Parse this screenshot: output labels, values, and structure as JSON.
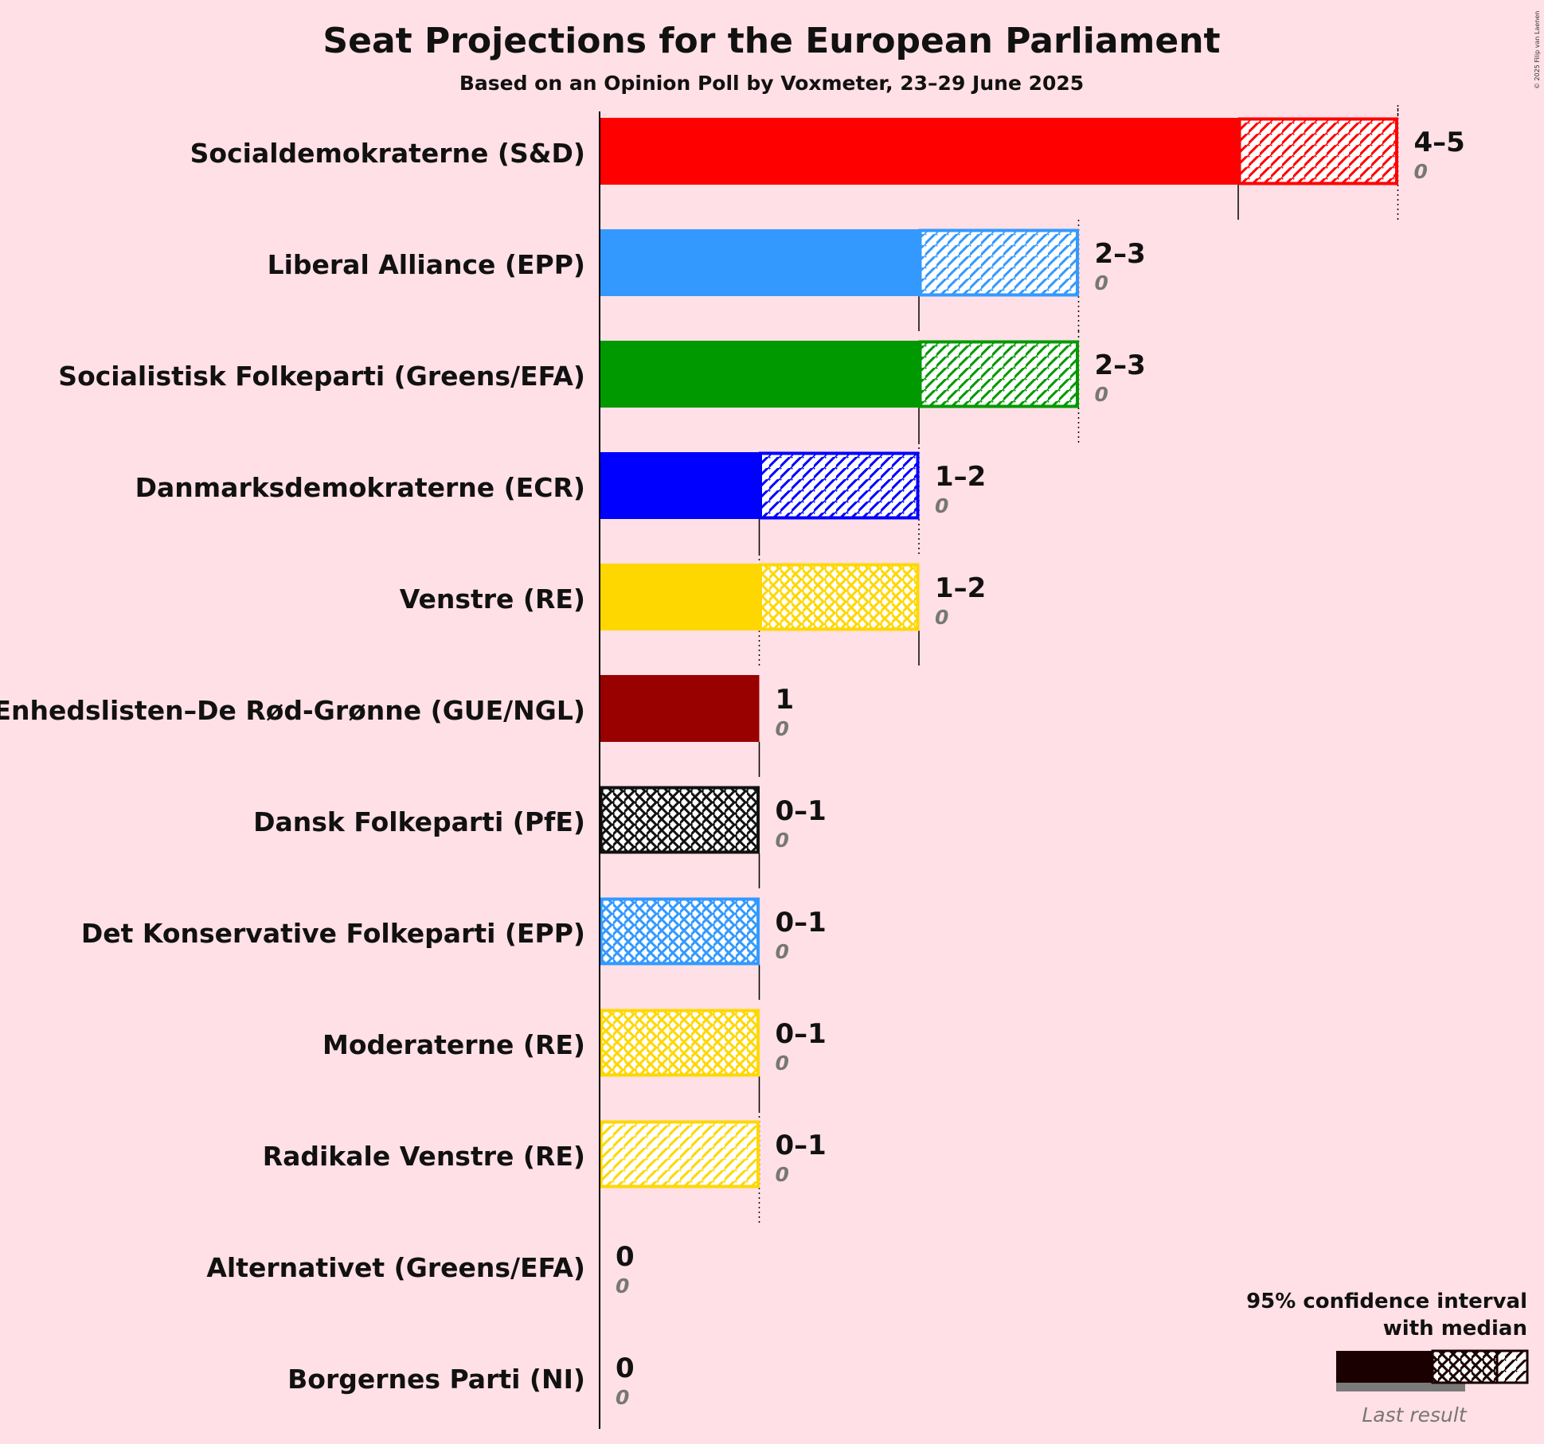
{
  "title": "Seat Projections for the European Parliament",
  "subtitle": "Based on an Opinion Poll by Voxmeter, 23–29 June 2025",
  "copyright": "© 2025 Filip van Laenen",
  "legend": {
    "line1": "95% confidence interval",
    "line2": "with median",
    "last_result_label": "Last result"
  },
  "chart_data": {
    "type": "bar",
    "orientation": "horizontal",
    "title": "Seat Projections for the European Parliament",
    "subtitle": "Based on an Opinion Poll by Voxmeter, 23–29 June 2025",
    "xlim": [
      0,
      5
    ],
    "bars": [
      {
        "party": "Socialdemokraterne (S&D)",
        "color": "#FF0000",
        "low": 4,
        "median": 4,
        "high": 5,
        "range_label": "4–5",
        "last_result": "0",
        "hatch": "diagonal"
      },
      {
        "party": "Liberal Alliance (EPP)",
        "color": "#3399FF",
        "low": 2,
        "median": 2,
        "high": 3,
        "range_label": "2–3",
        "last_result": "0",
        "hatch": "diagonal"
      },
      {
        "party": "Socialistisk Folkeparti (Greens/EFA)",
        "color": "#009900",
        "low": 2,
        "median": 2,
        "high": 3,
        "range_label": "2–3",
        "last_result": "0",
        "hatch": "diagonal"
      },
      {
        "party": "Danmarksdemokraterne (ECR)",
        "color": "#0000FF",
        "low": 1,
        "median": 1,
        "high": 2,
        "range_label": "1–2",
        "last_result": "0",
        "hatch": "diagonal"
      },
      {
        "party": "Venstre (RE)",
        "color": "#FFD700",
        "low": 1,
        "median": 2,
        "high": 2,
        "range_label": "1–2",
        "last_result": "0",
        "hatch": "cross"
      },
      {
        "party": "Enhedslisten–De Rød-Grønne (GUE/NGL)",
        "color": "#990000",
        "low": 1,
        "median": 1,
        "high": 1,
        "range_label": "1",
        "last_result": "0",
        "hatch": "none"
      },
      {
        "party": "Dansk Folkeparti (PfE)",
        "color": "#111111",
        "low": 0,
        "median": 1,
        "high": 1,
        "range_label": "0–1",
        "last_result": "0",
        "hatch": "cross"
      },
      {
        "party": "Det Konservative Folkeparti (EPP)",
        "color": "#3399FF",
        "low": 0,
        "median": 1,
        "high": 1,
        "range_label": "0–1",
        "last_result": "0",
        "hatch": "cross"
      },
      {
        "party": "Moderaterne (RE)",
        "color": "#FFD700",
        "low": 0,
        "median": 1,
        "high": 1,
        "range_label": "0–1",
        "last_result": "0",
        "hatch": "cross"
      },
      {
        "party": "Radikale Venstre (RE)",
        "color": "#FFD700",
        "low": 0,
        "median": 0,
        "high": 1,
        "range_label": "0–1",
        "last_result": "0",
        "hatch": "diagonal"
      },
      {
        "party": "Alternativet (Greens/EFA)",
        "color": "#009900",
        "low": 0,
        "median": 0,
        "high": 0,
        "range_label": "0",
        "last_result": "0",
        "hatch": "none"
      },
      {
        "party": "Borgernes Parti (NI)",
        "color": "#444444",
        "low": 0,
        "median": 0,
        "high": 0,
        "range_label": "0",
        "last_result": "0",
        "hatch": "none"
      }
    ]
  }
}
